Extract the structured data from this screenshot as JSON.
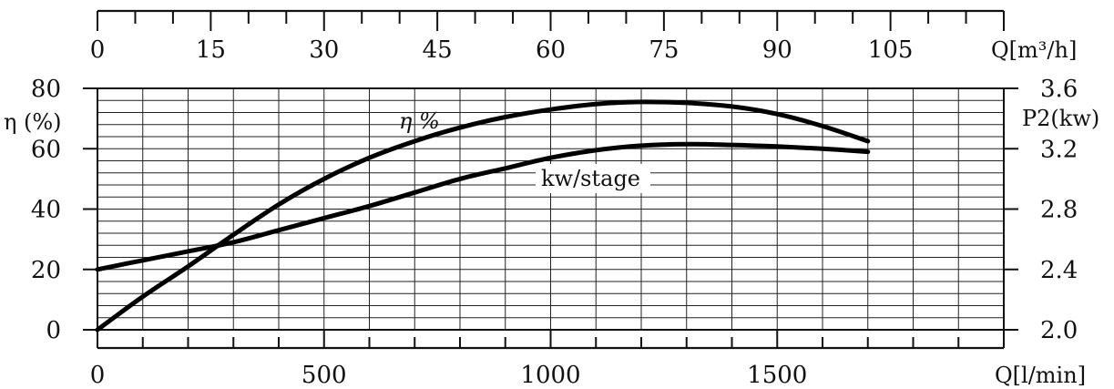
{
  "chart_data": {
    "type": "line",
    "x_bottom": {
      "label": "Q[l/min]",
      "range": [
        0,
        2000
      ],
      "ticks": [
        0,
        500,
        1000,
        1500
      ]
    },
    "x_top": {
      "label": "Q[m³/h]",
      "ticks": [
        0,
        15,
        30,
        45,
        60,
        75,
        90,
        105
      ]
    },
    "y_left": {
      "label": "η (%)",
      "range": [
        0,
        80
      ],
      "ticks": [
        0,
        20,
        40,
        60,
        80
      ]
    },
    "y_right": {
      "label": "P2(kw)",
      "range": [
        2.0,
        3.6
      ],
      "ticks": [
        "2.0",
        "2.4",
        "2.8",
        "3.2",
        "3.6"
      ]
    },
    "grid": true,
    "series": [
      {
        "name": "η %",
        "axis": "left",
        "x": [
          0,
          100,
          200,
          300,
          400,
          500,
          600,
          700,
          800,
          900,
          1000,
          1100,
          1200,
          1300,
          1400,
          1500,
          1600,
          1700
        ],
        "y": [
          0,
          11,
          21,
          31.5,
          41.5,
          50,
          57,
          62.5,
          67,
          70.5,
          73,
          74.8,
          75.5,
          75.2,
          74,
          71.5,
          67.5,
          62.5
        ]
      },
      {
        "name": "kw/stage",
        "axis": "right",
        "x": [
          0,
          100,
          200,
          300,
          400,
          500,
          600,
          700,
          800,
          900,
          1000,
          1100,
          1200,
          1300,
          1400,
          1500,
          1600,
          1700
        ],
        "y": [
          2.4,
          2.46,
          2.52,
          2.58,
          2.66,
          2.74,
          2.82,
          2.91,
          3.0,
          3.07,
          3.14,
          3.19,
          3.22,
          3.23,
          3.225,
          3.215,
          3.2,
          3.18
        ]
      }
    ]
  }
}
